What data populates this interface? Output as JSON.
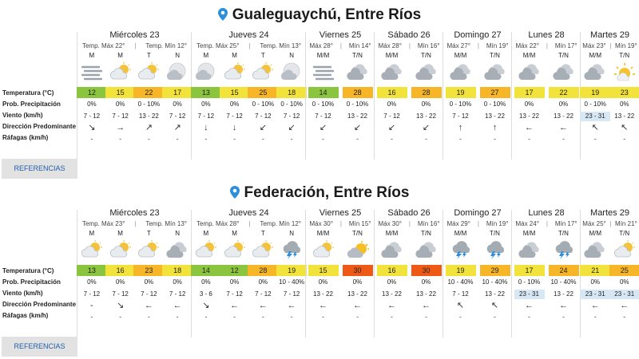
{
  "colors": {
    "green": "#8bc43f",
    "yellow": "#f2e23c",
    "orange": "#f7b528",
    "darkorange": "#f07e1e",
    "redorange": "#ee5a16",
    "light-blue-highlight": "#d7e7f4",
    "pin": "#2b8fd9"
  },
  "row_labels": {
    "temp": "Temperatura (°C)",
    "prob": "Prob. Precipitación",
    "wind": "Viento (km/h)",
    "dir": "Dirección Predominante",
    "gust": "Ráfagas (km/h)"
  },
  "references_label": "REFERENCIAS",
  "blocks": [
    {
      "title": "Gualeguaychú, Entre Ríos",
      "days": [
        {
          "name": "Miércoles 23",
          "max": "Temp. Máx 22°",
          "min": "Temp. Mín 12°",
          "periods": [
            {
              "label": "M",
              "icon": "fog-icon",
              "temp": "12",
              "color": "green",
              "prob": "0%",
              "wind": "7 - 12",
              "hl": false,
              "dir": "arrow-down-right",
              "gust": "-"
            },
            {
              "label": "M",
              "icon": "partly-cloudy-icon",
              "temp": "15",
              "color": "yellow",
              "prob": "0%",
              "wind": "7 - 12",
              "hl": false,
              "dir": "arrow-right",
              "gust": "-"
            },
            {
              "label": "T",
              "icon": "partly-cloudy-icon",
              "temp": "22",
              "color": "orange",
              "prob": "0 - 10%",
              "wind": "13 - 22",
              "hl": false,
              "dir": "arrow-up-right",
              "gust": "-"
            },
            {
              "label": "N",
              "icon": "night-cloudy-icon",
              "temp": "17",
              "color": "yellow",
              "prob": "0%",
              "wind": "7 - 12",
              "hl": false,
              "dir": "arrow-up-right",
              "gust": "-"
            }
          ]
        },
        {
          "name": "Jueves 24",
          "max": "Temp. Máx 25°",
          "min": "Temp. Mín 13°",
          "periods": [
            {
              "label": "M",
              "icon": "night-cloudy-icon",
              "temp": "13",
              "color": "green",
              "prob": "0%",
              "wind": "7 - 12",
              "hl": false,
              "dir": "arrow-down",
              "gust": "-"
            },
            {
              "label": "M",
              "icon": "partly-cloudy-icon",
              "temp": "15",
              "color": "yellow",
              "prob": "0%",
              "wind": "7 - 12",
              "hl": false,
              "dir": "arrow-down",
              "gust": "-"
            },
            {
              "label": "T",
              "icon": "partly-cloudy-icon",
              "temp": "25",
              "color": "orange",
              "prob": "0 - 10%",
              "wind": "7 - 12",
              "hl": false,
              "dir": "arrow-down-left",
              "gust": "-"
            },
            {
              "label": "N",
              "icon": "night-cloudy-icon",
              "temp": "18",
              "color": "yellow",
              "prob": "0 - 10%",
              "wind": "7 - 12",
              "hl": false,
              "dir": "arrow-down-left",
              "gust": "-"
            }
          ]
        },
        {
          "name": "Viernes 25",
          "max": "Máx 28°",
          "min": "Mín 14°",
          "periods": [
            {
              "label": "M/M",
              "icon": "fog-icon",
              "temp": "14",
              "color": "green",
              "prob": "0 - 10%",
              "wind": "7 - 12",
              "hl": false,
              "dir": "arrow-down-left",
              "gust": "-"
            },
            {
              "label": "T/N",
              "icon": "cloudy-icon",
              "temp": "28",
              "color": "orange",
              "prob": "0 - 10%",
              "wind": "13 - 22",
              "hl": false,
              "dir": "arrow-down-left",
              "gust": "-"
            }
          ]
        },
        {
          "name": "Sábado 26",
          "max": "Máx 28°",
          "min": "Mín 16°",
          "periods": [
            {
              "label": "M/M",
              "icon": "cloudy-icon",
              "temp": "16",
              "color": "yellow",
              "prob": "0%",
              "wind": "7 - 12",
              "hl": false,
              "dir": "arrow-down-left",
              "gust": "-"
            },
            {
              "label": "T/N",
              "icon": "cloudy-icon",
              "temp": "28",
              "color": "orange",
              "prob": "0%",
              "wind": "13 - 22",
              "hl": false,
              "dir": "arrow-down-left",
              "gust": "-"
            }
          ]
        },
        {
          "name": "Domingo 27",
          "max": "Máx 27°",
          "min": "Mín 19°",
          "periods": [
            {
              "label": "M/M",
              "icon": "cloudy-icon",
              "temp": "19",
              "color": "yellow",
              "prob": "0 - 10%",
              "wind": "7 - 12",
              "hl": false,
              "dir": "arrow-up",
              "gust": "-"
            },
            {
              "label": "T/N",
              "icon": "cloudy-icon",
              "temp": "27",
              "color": "orange",
              "prob": "0 - 10%",
              "wind": "13 - 22",
              "hl": false,
              "dir": "arrow-up",
              "gust": "-"
            }
          ]
        },
        {
          "name": "Lunes 28",
          "max": "Máx 22°",
          "min": "Mín 17°",
          "periods": [
            {
              "label": "M/M",
              "icon": "cloudy-icon",
              "temp": "17",
              "color": "yellow",
              "prob": "0%",
              "wind": "13 - 22",
              "hl": false,
              "dir": "arrow-left",
              "gust": "-"
            },
            {
              "label": "T/N",
              "icon": "cloudy-icon",
              "temp": "22",
              "color": "yellow",
              "prob": "0%",
              "wind": "13 - 22",
              "hl": false,
              "dir": "arrow-left",
              "gust": "-"
            }
          ]
        },
        {
          "name": "Martes 29",
          "max": "Máx 23°",
          "min": "Mín 19°",
          "periods": [
            {
              "label": "M/M",
              "icon": "cloudy-icon",
              "temp": "19",
              "color": "yellow",
              "prob": "0 - 10%",
              "wind": "23 - 31",
              "hl": true,
              "dir": "arrow-up-left",
              "gust": "-"
            },
            {
              "label": "T/N",
              "icon": "sun-icon",
              "temp": "23",
              "color": "yellow",
              "prob": "0%",
              "wind": "13 - 22",
              "hl": false,
              "dir": "arrow-up-left",
              "gust": "-"
            }
          ]
        }
      ]
    },
    {
      "title": "Federación, Entre Ríos",
      "days": [
        {
          "name": "Miércoles 23",
          "max": "Temp. Máx 23°",
          "min": "Temp. Mín 13°",
          "periods": [
            {
              "label": "M",
              "icon": "partly-cloudy-icon",
              "temp": "13",
              "color": "green",
              "prob": "0%",
              "wind": "7 - 12",
              "hl": false,
              "dir": "none",
              "gust": "-"
            },
            {
              "label": "M",
              "icon": "partly-cloudy-icon",
              "temp": "16",
              "color": "yellow",
              "prob": "0%",
              "wind": "7 - 12",
              "hl": false,
              "dir": "arrow-down-right",
              "gust": "-"
            },
            {
              "label": "T",
              "icon": "partly-cloudy-icon",
              "temp": "23",
              "color": "orange",
              "prob": "0%",
              "wind": "7 - 12",
              "hl": false,
              "dir": "arrow-left",
              "gust": "-"
            },
            {
              "label": "N",
              "icon": "cloudy-icon",
              "temp": "18",
              "color": "yellow",
              "prob": "0%",
              "wind": "7 - 12",
              "hl": false,
              "dir": "arrow-left",
              "gust": "-"
            }
          ]
        },
        {
          "name": "Jueves 24",
          "max": "Temp. Máx 28°",
          "min": "Temp. Mín 12°",
          "periods": [
            {
              "label": "M",
              "icon": "partly-cloudy-icon",
              "temp": "14",
              "color": "green",
              "prob": "0%",
              "wind": "3 - 6",
              "hl": false,
              "dir": "arrow-down-right",
              "gust": "-"
            },
            {
              "label": "M",
              "icon": "partly-cloudy-icon",
              "temp": "12",
              "color": "green",
              "prob": "0%",
              "wind": "7 - 12",
              "hl": false,
              "dir": "arrow-left",
              "gust": "-"
            },
            {
              "label": "T",
              "icon": "partly-cloudy-icon",
              "temp": "28",
              "color": "orange",
              "prob": "0%",
              "wind": "7 - 12",
              "hl": false,
              "dir": "arrow-left",
              "gust": "-"
            },
            {
              "label": "N",
              "icon": "storm-icon",
              "temp": "19",
              "color": "yellow",
              "prob": "10 - 40%",
              "wind": "7 - 12",
              "hl": false,
              "dir": "arrow-left",
              "gust": "-"
            }
          ]
        },
        {
          "name": "Viernes 25",
          "max": "Máx 30°",
          "min": "Mín 15°",
          "periods": [
            {
              "label": "M/M",
              "icon": "partly-cloudy-icon",
              "temp": "15",
              "color": "yellow",
              "prob": "0%",
              "wind": "13 - 22",
              "hl": false,
              "dir": "arrow-left",
              "gust": "-"
            },
            {
              "label": "T/N",
              "icon": "sun-cloud-icon",
              "temp": "30",
              "color": "redorange",
              "prob": "0%",
              "wind": "13 - 22",
              "hl": false,
              "dir": "arrow-left",
              "gust": "-"
            }
          ]
        },
        {
          "name": "Sábado 26",
          "max": "Máx 30°",
          "min": "Mín 16°",
          "periods": [
            {
              "label": "M/M",
              "icon": "cloudy-icon",
              "temp": "16",
              "color": "yellow",
              "prob": "0%",
              "wind": "13 - 22",
              "hl": false,
              "dir": "arrow-left",
              "gust": "-"
            },
            {
              "label": "T/N",
              "icon": "cloudy-icon",
              "temp": "30",
              "color": "redorange",
              "prob": "0%",
              "wind": "13 - 22",
              "hl": false,
              "dir": "arrow-left",
              "gust": "-"
            }
          ]
        },
        {
          "name": "Domingo 27",
          "max": "Máx 29°",
          "min": "Mín 19°",
          "periods": [
            {
              "label": "M/M",
              "icon": "storm-icon",
              "temp": "19",
              "color": "yellow",
              "prob": "10 - 40%",
              "wind": "7 - 12",
              "hl": false,
              "dir": "arrow-up-left",
              "gust": "-"
            },
            {
              "label": "T/N",
              "icon": "storm-icon",
              "temp": "29",
              "color": "orange",
              "prob": "10 - 40%",
              "wind": "13 - 22",
              "hl": false,
              "dir": "arrow-up-left",
              "gust": "-"
            }
          ]
        },
        {
          "name": "Lunes 28",
          "max": "Máx 24°",
          "min": "Mín 17°",
          "periods": [
            {
              "label": "M/M",
              "icon": "cloudy-icon",
              "temp": "17",
              "color": "yellow",
              "prob": "0 - 10%",
              "wind": "23 - 31",
              "hl": true,
              "dir": "arrow-left",
              "gust": "-"
            },
            {
              "label": "T/N",
              "icon": "storm-icon",
              "temp": "24",
              "color": "orange",
              "prob": "10 - 40%",
              "wind": "13 - 22",
              "hl": false,
              "dir": "arrow-left",
              "gust": "-"
            }
          ]
        },
        {
          "name": "Martes 29",
          "max": "Máx 25°",
          "min": "Mín 21°",
          "periods": [
            {
              "label": "M/M",
              "icon": "cloudy-icon",
              "temp": "21",
              "color": "yellow",
              "prob": "0%",
              "wind": "23 - 31",
              "hl": true,
              "dir": "arrow-left",
              "gust": "-"
            },
            {
              "label": "T/N",
              "icon": "partly-cloudy-icon",
              "temp": "25",
              "color": "orange",
              "prob": "0%",
              "wind": "23 - 31",
              "hl": true,
              "dir": "arrow-left",
              "gust": "-"
            }
          ]
        }
      ]
    }
  ]
}
